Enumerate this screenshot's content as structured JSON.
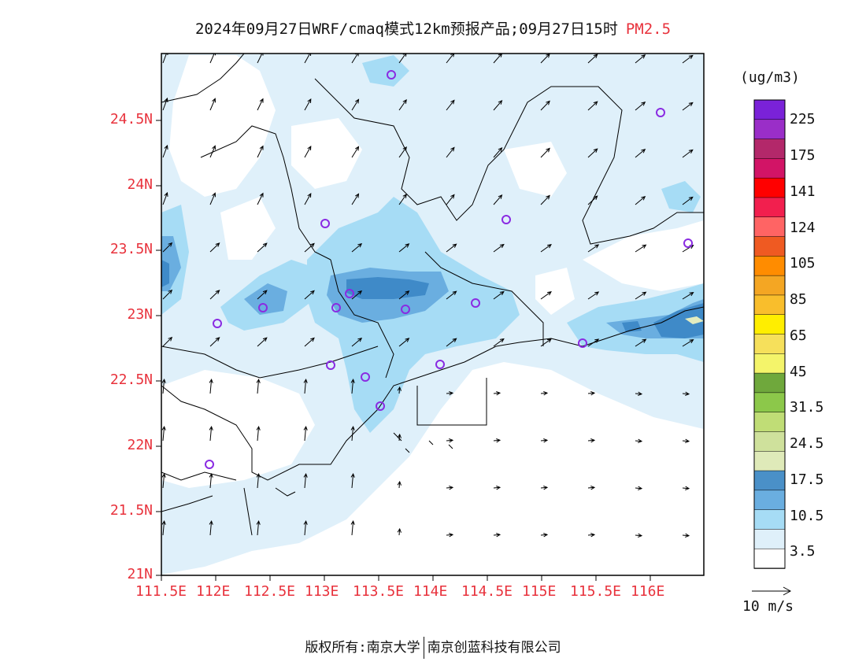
{
  "title": {
    "main": "2024年09月27日WRF/cmaq模式12km预报产品;09月27日15时",
    "pollutant": "PM2.5"
  },
  "map": {
    "lat_labels": [
      "24.5N",
      "24N",
      "23.5N",
      "23N",
      "22.5N",
      "22N",
      "21.5N",
      "21N"
    ],
    "lon_labels": [
      "111.5E",
      "112E",
      "112.5E",
      "113E",
      "113.5E",
      "114E",
      "114.5E",
      "115E",
      "115.5E",
      "116E"
    ],
    "colors": {
      "very_light": "#dff0fa",
      "light": "#a6dcf5",
      "mid": "#6aaee0",
      "dark": "#3f8ac8",
      "pale_yellow": "#e3ecbf",
      "station_marker": "#8a2be2",
      "axis_label": "#e8323c"
    }
  },
  "colorbar": {
    "unit": "(ug/m3)",
    "labels": [
      "225",
      "175",
      "141",
      "124",
      "105",
      "85",
      "65",
      "45",
      "31.5",
      "24.5",
      "17.5",
      "10.5",
      "3.5"
    ],
    "swatches": [
      "#7a22d8",
      "#9a2ec8",
      "#b3286a",
      "#d21466",
      "#ff0000",
      "#f21f4e",
      "#ff6464",
      "#ef5a22",
      "#ff8c00",
      "#f4a623",
      "#f9be2c",
      "#ffee00",
      "#f6e05b",
      "#f4f46a",
      "#6fa83c",
      "#8cc84a",
      "#c0dd76",
      "#cfe19c",
      "#dfeab9",
      "#4a90c8",
      "#6aaee0",
      "#a6dcf5",
      "#dff0fa",
      "#ffffff"
    ]
  },
  "wind_legend": {
    "label": "10 m/s"
  },
  "footer": {
    "copyright": "版权所有:南京大学",
    "company": "南京创蓝科技有限公司"
  }
}
